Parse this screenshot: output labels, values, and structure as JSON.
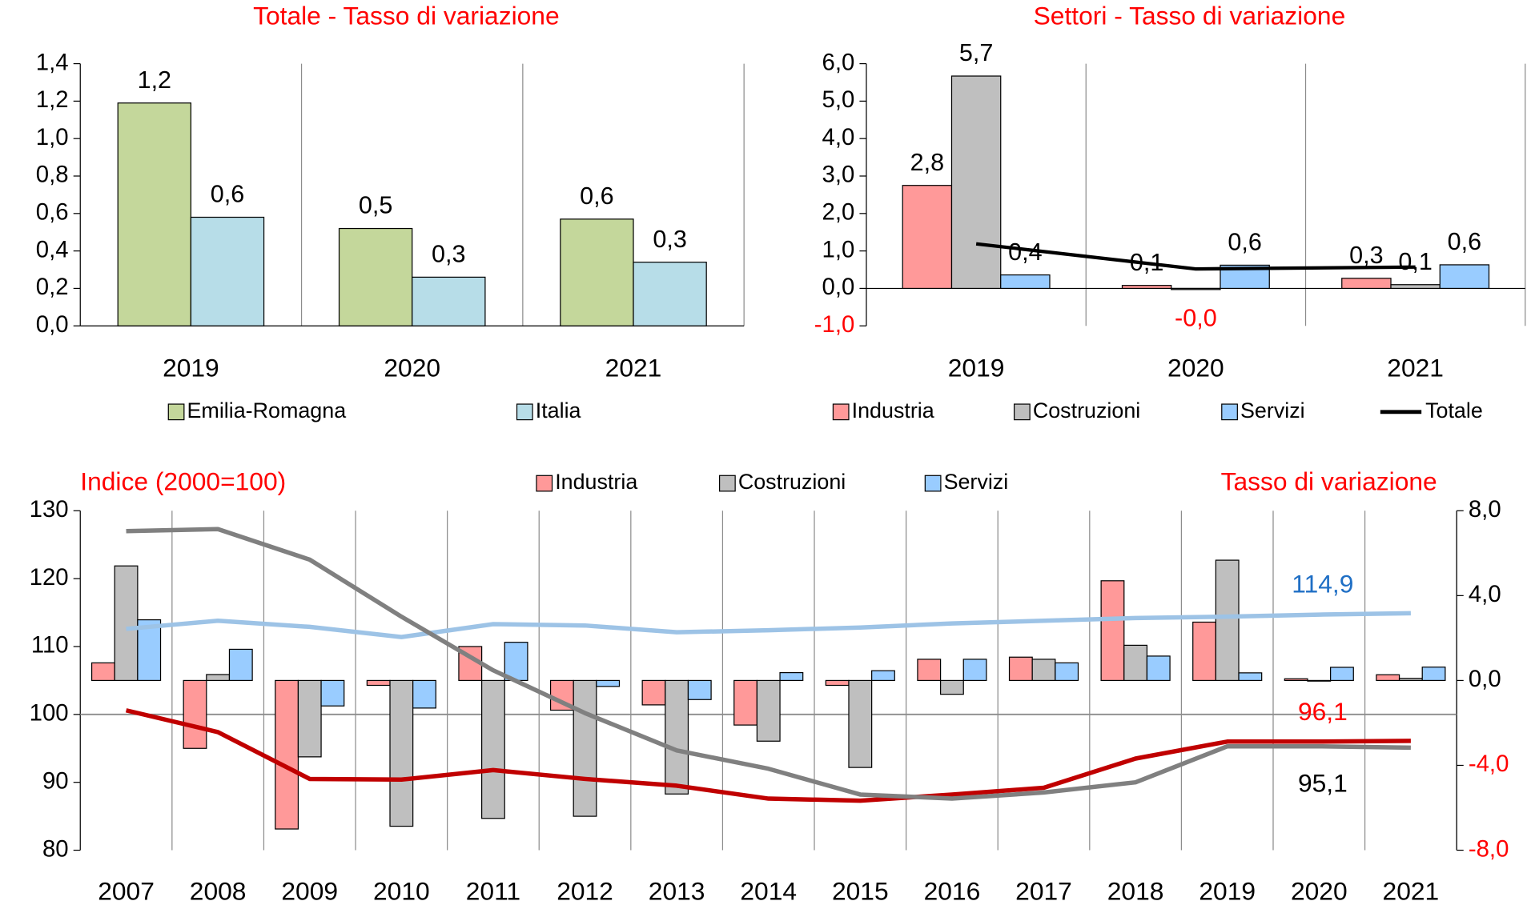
{
  "chart_data": [
    {
      "type": "bar",
      "title": "Totale - Tasso di variazione",
      "title_color": "#ff0000",
      "categories": [
        "2019",
        "2020",
        "2021"
      ],
      "series": [
        {
          "name": "Emilia-Romagna",
          "color": "#c4d79b",
          "values": [
            1.19,
            0.52,
            0.57
          ],
          "value_labels": [
            "1,2",
            "0,5",
            "0,6"
          ]
        },
        {
          "name": "Italia",
          "color": "#b7dde8",
          "values": [
            0.58,
            0.26,
            0.34
          ],
          "value_labels": [
            "0,6",
            "0,3",
            "0,3"
          ]
        }
      ],
      "ylim": [
        0,
        1.4
      ],
      "yticks": [
        {
          "value": 0,
          "label": "0,0"
        },
        {
          "value": 0.2,
          "label": "0,2"
        },
        {
          "value": 0.4,
          "label": "0,4"
        },
        {
          "value": 0.6,
          "label": "0,6"
        },
        {
          "value": 0.8,
          "label": "0,8"
        },
        {
          "value": 1,
          "label": "1,0"
        },
        {
          "value": 1.2,
          "label": "1,2"
        },
        {
          "value": 1.4,
          "label": "1,4"
        }
      ],
      "legend": "bottom"
    },
    {
      "type": "combo",
      "title": "Settori - Tasso di variazione",
      "title_color": "#ff0000",
      "categories": [
        "2019",
        "2020",
        "2021"
      ],
      "series": [
        {
          "name": "Industria",
          "color": "#ff9999",
          "values": [
            2.75,
            0.08,
            0.27
          ],
          "value_labels": [
            "2,8",
            "0,1",
            "0,3"
          ]
        },
        {
          "name": "Costruzioni",
          "color": "#bfbfbf",
          "values": [
            5.67,
            -0.03,
            0.1
          ],
          "value_labels": [
            "5,7",
            "-0,0",
            "0,1"
          ]
        },
        {
          "name": "Servizi",
          "color": "#99ccff",
          "values": [
            0.36,
            0.62,
            0.63
          ],
          "value_labels": [
            "0,4",
            "0,6",
            "0,6"
          ]
        },
        {
          "name": "Totale",
          "type": "line",
          "color": "#000000",
          "values": [
            1.19,
            0.52,
            0.57
          ]
        }
      ],
      "ylim": [
        -1,
        6
      ],
      "yticks": [
        {
          "value": -1,
          "label": "-1,0"
        },
        {
          "value": 0,
          "label": "0,0"
        },
        {
          "value": 1,
          "label": "1,0"
        },
        {
          "value": 2,
          "label": "2,0"
        },
        {
          "value": 3,
          "label": "3,0"
        },
        {
          "value": 4,
          "label": "4,0"
        },
        {
          "value": 5,
          "label": "5,0"
        },
        {
          "value": 6,
          "label": "6,0"
        }
      ],
      "legend": "bottom"
    },
    {
      "type": "combo",
      "y_label": "Indice (2000=100)",
      "y2_label": "Tasso di variazione",
      "label_color": "#ff0000",
      "categories": [
        "2007",
        "2008",
        "2009",
        "2010",
        "2011",
        "2012",
        "2013",
        "2014",
        "2015",
        "2016",
        "2017",
        "2018",
        "2019",
        "2020",
        "2021"
      ],
      "series": [
        {
          "name": "Industria",
          "color": "#ff9999",
          "axis": "y2",
          "values": [
            0.83,
            -3.2,
            -7.0,
            -0.23,
            1.6,
            -1.4,
            -1.15,
            -2.1,
            -0.23,
            1.0,
            1.1,
            4.7,
            2.75,
            0.08,
            0.27
          ]
        },
        {
          "name": "Costruzioni",
          "color": "#bfbfbf",
          "axis": "y2",
          "values": [
            5.4,
            0.28,
            -3.6,
            -6.87,
            -6.5,
            -6.4,
            -5.35,
            -2.86,
            -4.1,
            -0.65,
            1.0,
            1.66,
            5.67,
            -0.03,
            0.1
          ]
        },
        {
          "name": "Servizi",
          "color": "#99ccff",
          "axis": "y2",
          "values": [
            2.86,
            1.47,
            -1.2,
            -1.3,
            1.8,
            -0.28,
            -0.9,
            0.37,
            0.46,
            1.0,
            0.83,
            1.15,
            0.36,
            0.62,
            0.63
          ]
        },
        {
          "type": "line",
          "color": "#9dc3e6",
          "label_color": "#1f6fc5",
          "label_position": "above",
          "values": [
            112.6,
            113.8,
            112.9,
            111.4,
            113.3,
            113.1,
            112.1,
            112.4,
            112.8,
            113.4,
            113.8,
            114.2,
            114.4,
            114.7,
            114.9
          ],
          "value_labels": [
            null,
            null,
            null,
            null,
            null,
            null,
            null,
            null,
            null,
            null,
            null,
            null,
            null,
            null,
            "114,9"
          ]
        },
        {
          "type": "line",
          "color": "#c00000",
          "label_color": "#ff0000",
          "label_position": "above",
          "values": [
            100.6,
            97.4,
            90.5,
            90.4,
            91.8,
            90.5,
            89.5,
            87.6,
            87.3,
            88.2,
            89.2,
            93.5,
            96.0,
            96.0,
            96.1
          ],
          "value_labels": [
            null,
            null,
            null,
            null,
            null,
            null,
            null,
            null,
            null,
            null,
            null,
            null,
            null,
            null,
            "96,1"
          ]
        },
        {
          "type": "line",
          "color": "#808080",
          "label_color": "#000000",
          "label_position": "below",
          "values": [
            127.0,
            127.3,
            122.8,
            114.4,
            106.5,
            100.2,
            94.7,
            92.0,
            88.2,
            87.6,
            88.5,
            90.0,
            95.3,
            95.3,
            95.1
          ],
          "value_labels": [
            null,
            null,
            null,
            null,
            null,
            null,
            null,
            null,
            null,
            null,
            null,
            null,
            null,
            null,
            "95,1"
          ]
        }
      ],
      "ylim": [
        80,
        130
      ],
      "yticks": [
        80,
        90,
        100,
        110,
        120,
        130
      ],
      "y2lim": [
        -8,
        8
      ],
      "y2ticks": [
        {
          "value": -8,
          "label": "-8,0"
        },
        {
          "value": -4,
          "label": "-4,0"
        },
        {
          "value": 0,
          "label": "0,0"
        },
        {
          "value": 4,
          "label": "4,0"
        },
        {
          "value": 8,
          "label": "8,0"
        }
      ],
      "x_axis_at": 100,
      "legend": "top"
    }
  ]
}
